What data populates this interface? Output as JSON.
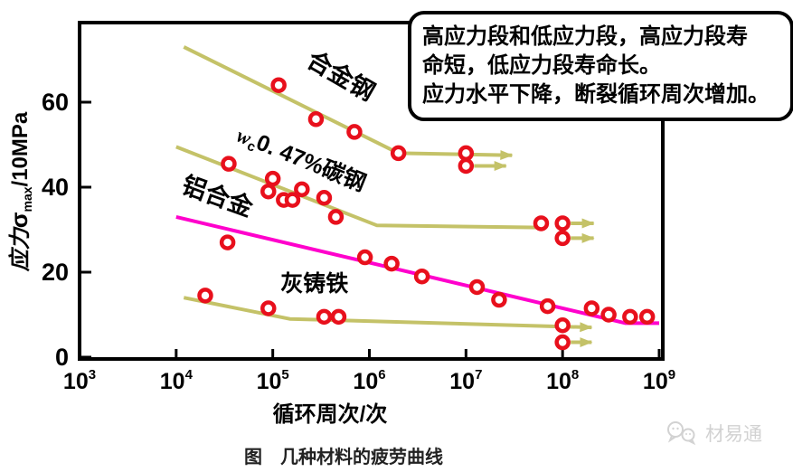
{
  "callout": {
    "lines": [
      "高应力段和低应力段，高应力段寿",
      "命短，低应力段寿命长。",
      "应力水平下降，断裂循环周次增加。"
    ]
  },
  "watermark": {
    "text": "材易通",
    "icon": "wechat-chat-bubbles"
  },
  "chart_data": {
    "type": "line",
    "title": "图　几种材料的疲劳曲线",
    "xlabel": "循环周次/次",
    "ylabel_plain": "应力σmax/10MPa",
    "ylabel_parts": {
      "prefix": "应力",
      "sigma": "σ",
      "sub": "max",
      "suffix": "/10MPa"
    },
    "x_scale": "log",
    "x_ticks_exp": [
      3,
      4,
      5,
      6,
      7,
      8,
      9
    ],
    "xlim_exp": [
      3,
      9
    ],
    "y_ticks": [
      0,
      20,
      40,
      60
    ],
    "ylim": [
      0,
      79
    ],
    "grid": false,
    "legend_position": "inline-labels",
    "colors": {
      "curve": "#c4c268",
      "aluminum": "#ff00cc",
      "point_stroke": "#e8101c",
      "point_fill": "#ffffff",
      "axis": "#000000"
    },
    "series": [
      {
        "name": "alloy-steel",
        "label": "合金钢",
        "label_rich": null,
        "color_key": "curve",
        "line": [
          [
            12000,
            73
          ],
          [
            2000000,
            48
          ],
          [
            30000000,
            47.5
          ]
        ],
        "end_arrow": true,
        "points": [
          [
            115000,
            64
          ],
          [
            280000,
            56
          ],
          [
            700000,
            53
          ],
          [
            2000000,
            48
          ],
          [
            10000000,
            48
          ],
          [
            10000000,
            45
          ]
        ],
        "runout_arrows": [
          {
            "x1": 10000000,
            "x2": 26000000,
            "v": 45
          }
        ],
        "label_pos": {
          "n": 460000,
          "v": 64.5,
          "angle": 30,
          "size": 27
        }
      },
      {
        "name": "carbon-steel",
        "label": "wc0. 47%碳钢",
        "label_rich": [
          {
            "t": "w",
            "st": "iser"
          },
          {
            "t": "c",
            "st": "sub"
          },
          {
            "t": "0. 47%碳钢",
            "st": ""
          }
        ],
        "color_key": "curve",
        "line": [
          [
            10000,
            49.5
          ],
          [
            1200000,
            31
          ],
          [
            60000000,
            30.5
          ]
        ],
        "end_arrow": false,
        "points": [
          [
            35000,
            45.5
          ],
          [
            100000,
            42
          ],
          [
            90000,
            39
          ],
          [
            200000,
            39.5
          ],
          [
            130000,
            37
          ],
          [
            160000,
            37
          ],
          [
            340000,
            37.5
          ],
          [
            450000,
            33
          ],
          [
            60000000,
            31.5
          ],
          [
            100000000,
            31.5
          ],
          [
            100000000,
            28
          ]
        ],
        "runout_arrows": [
          {
            "x1": 100000000,
            "x2": 210000000,
            "v": 31.5
          },
          {
            "x1": 100000000,
            "x2": 210000000,
            "v": 28
          }
        ],
        "label_pos": {
          "n": 185000,
          "v": 45,
          "angle": 22,
          "size": 25
        }
      },
      {
        "name": "aluminum-alloy",
        "label": "铝合金",
        "label_rich": null,
        "color_key": "aluminum",
        "line": [
          [
            10000,
            33
          ],
          [
            450000000,
            8
          ],
          [
            1000000000,
            8
          ]
        ],
        "end_arrow": false,
        "points": [
          [
            34000,
            27
          ],
          [
            900000,
            23.5
          ],
          [
            1700000,
            22
          ],
          [
            3500000,
            19
          ],
          [
            13000000,
            16.5
          ],
          [
            22000000,
            13.5
          ],
          [
            70000000,
            12
          ],
          [
            200000000,
            11.5
          ],
          [
            300000000,
            10
          ],
          [
            500000000,
            9.5
          ],
          [
            750000000,
            9.5
          ]
        ],
        "runout_arrows": [],
        "label_pos": {
          "n": 25000,
          "v": 36,
          "angle": 20,
          "size": 27
        }
      },
      {
        "name": "gray-cast-iron",
        "label": "灰铸铁",
        "label_rich": null,
        "color_key": "curve",
        "line": [
          [
            12000,
            14
          ],
          [
            150000,
            9
          ],
          [
            200000000,
            7
          ]
        ],
        "end_arrow": true,
        "points": [
          [
            20000,
            14.5
          ],
          [
            90000,
            11.5
          ],
          [
            340000,
            9.5
          ],
          [
            480000,
            9.5
          ],
          [
            100000000,
            7.5
          ],
          [
            100000000,
            3.5
          ]
        ],
        "runout_arrows": [
          {
            "x1": 100000000,
            "x2": 200000000,
            "v": 3.5
          }
        ],
        "label_pos": {
          "n": 270000,
          "v": 15.5,
          "angle": 0,
          "size": 25
        }
      }
    ]
  }
}
